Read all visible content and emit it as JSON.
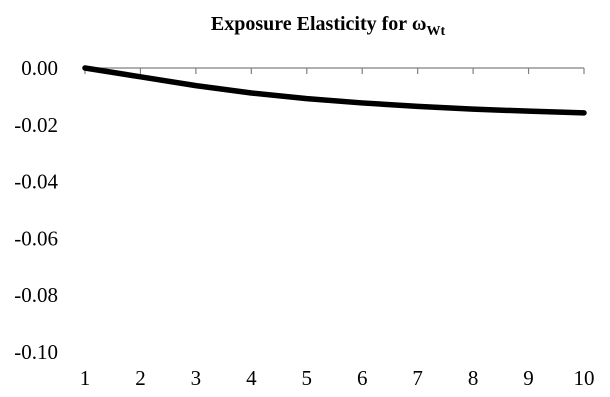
{
  "chart_data": {
    "type": "line",
    "title": "Exposure Elasticity for ω",
    "title_subscript": "Wt",
    "xlabel": "",
    "ylabel": "",
    "categories": [
      "1",
      "2",
      "3",
      "4",
      "5",
      "6",
      "7",
      "8",
      "9",
      "10"
    ],
    "x": [
      1,
      2,
      3,
      4,
      5,
      6,
      7,
      8,
      9,
      10
    ],
    "series": [
      {
        "values": [
          0.0,
          -0.0031,
          -0.0062,
          -0.0088,
          -0.0108,
          -0.0123,
          -0.0135,
          -0.0145,
          -0.0152,
          -0.0158
        ]
      }
    ],
    "ylim": [
      -0.1,
      0.0
    ],
    "yticks": [
      "0.00",
      "-0.02",
      "-0.04",
      "-0.06",
      "-0.08",
      "-0.10"
    ],
    "ytick_values": [
      0.0,
      -0.02,
      -0.04,
      -0.06,
      -0.08,
      -0.1
    ],
    "grid": false,
    "line_color": "#000000",
    "axis_color": "#808080"
  }
}
